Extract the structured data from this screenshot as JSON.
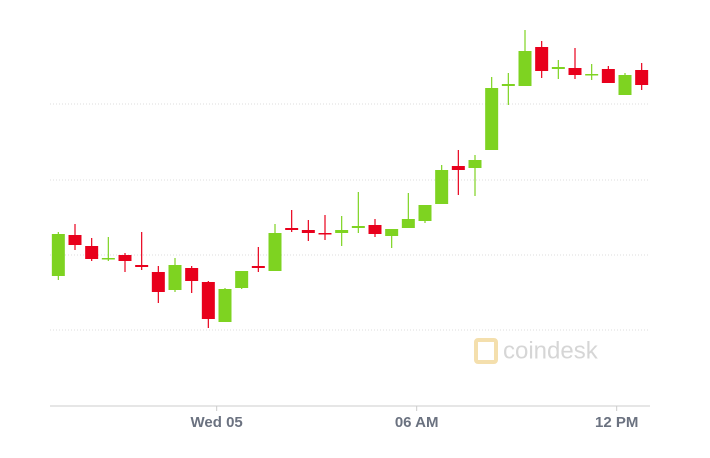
{
  "chart_data": {
    "type": "candlestick",
    "watermark": "coindesk",
    "up_color": "#7ed321",
    "down_color": "#e8001c",
    "grid": true,
    "x": [
      0,
      1,
      2,
      3,
      4,
      5,
      6,
      7,
      8,
      9,
      10,
      11,
      12,
      13,
      14,
      15,
      16,
      17,
      18,
      19,
      20,
      21,
      22,
      23,
      24,
      25,
      26,
      27,
      28,
      29,
      30,
      31,
      32,
      33,
      34,
      35
    ],
    "open": [
      130,
      171,
      160,
      147,
      151,
      141,
      134,
      116,
      138,
      124,
      84,
      118,
      140,
      135,
      178,
      176,
      173,
      173,
      178,
      181,
      170,
      178,
      185,
      202,
      240,
      238,
      256,
      320,
      320,
      359,
      337,
      338,
      331,
      337,
      311,
      336
    ],
    "high": [
      174,
      182,
      168,
      169,
      153,
      174,
      140,
      148,
      140,
      125,
      118,
      135,
      159,
      182,
      196,
      186,
      191,
      190,
      214,
      187,
      177,
      213,
      201,
      241,
      256,
      251,
      329,
      333,
      376,
      365,
      346,
      358,
      342,
      340,
      333,
      343
    ],
    "low": [
      126,
      156,
      145,
      145,
      134,
      136,
      103,
      114,
      113,
      78,
      84,
      117,
      134,
      135,
      174,
      165,
      166,
      160,
      173,
      169,
      158,
      178,
      183,
      202,
      211,
      210,
      256,
      301,
      320,
      328,
      327,
      327,
      326,
      323,
      311,
      316
    ],
    "close": [
      172,
      161,
      147,
      148,
      145,
      139,
      114,
      141,
      125,
      87,
      117,
      135,
      138,
      173,
      176,
      173,
      172,
      176,
      180,
      172,
      177,
      187,
      201,
      236,
      236,
      246,
      318,
      322,
      355,
      335,
      339,
      331,
      332,
      323,
      331,
      321
    ],
    "xlim": [
      -0.5,
      35.5
    ],
    "xticks": [
      {
        "value": 9.5,
        "label": "Wed 05"
      },
      {
        "value": 21.5,
        "label": "06 AM"
      },
      {
        "value": 33.5,
        "label": "12 PM"
      }
    ],
    "ylim": [
      0,
      377
    ],
    "yticks": [
      0,
      76,
      151,
      226,
      302
    ]
  }
}
